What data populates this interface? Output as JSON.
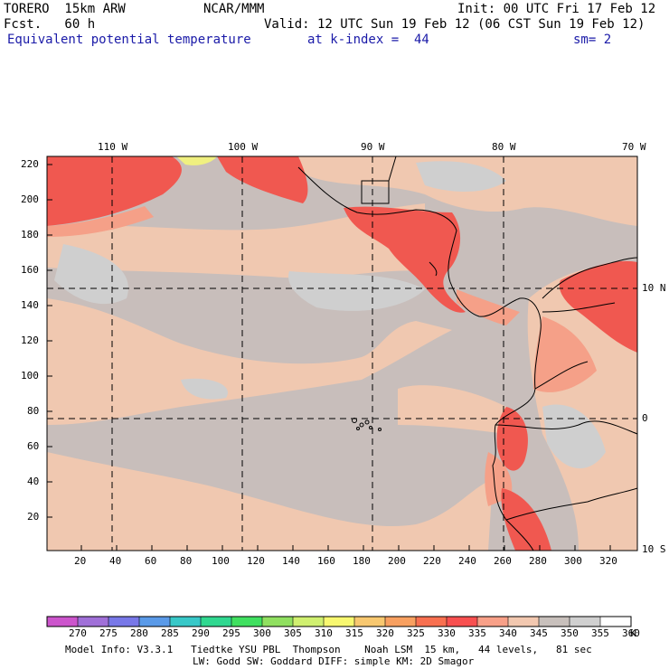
{
  "header": {
    "model": "TORERO  15km ARW",
    "center": "NCAR/MMM",
    "init": "Init: 00 UTC Fri 17 Feb 12",
    "fcst": "Fcst.   60 h",
    "valid": "Valid: 12 UTC Sun 19 Feb 12 (06 CST Sun 19 Feb 12)",
    "field": "Equivalent potential temperature",
    "kindex": "at k-index =  44",
    "sm": "sm= 2"
  },
  "map": {
    "lon_labels": [
      "110 W",
      "100 W",
      "90 W",
      "80 W",
      "70 W"
    ],
    "lat_labels": [
      "10 N",
      "0",
      "10 S"
    ],
    "y_ticks": [
      "220",
      "200",
      "180",
      "160",
      "140",
      "120",
      "100",
      "80",
      "60",
      "40",
      "20"
    ],
    "x_ticks": [
      "20",
      "40",
      "60",
      "80",
      "100",
      "120",
      "140",
      "160",
      "180",
      "200",
      "220",
      "240",
      "260",
      "280",
      "300",
      "320"
    ]
  },
  "colorbar": {
    "labels": [
      "270",
      "275",
      "280",
      "285",
      "290",
      "295",
      "300",
      "305",
      "310",
      "315",
      "320",
      "325",
      "330",
      "335",
      "340",
      "345",
      "350",
      "355",
      "360"
    ],
    "unit": "K",
    "colors": [
      "#cc55cc",
      "#a070d8",
      "#7878e8",
      "#5a9ae8",
      "#38c8c8",
      "#30d890",
      "#40e060",
      "#90e060",
      "#d0f070",
      "#f8f870",
      "#f8c870",
      "#f8a060",
      "#f87050",
      "#f85050",
      "#f8a088",
      "#f2c8b0",
      "#c8c0bc",
      "#d0d0d0",
      "#ffffff"
    ]
  },
  "footer": {
    "line1": "Model Info: V3.3.1   Tiedtke YSU PBL  Thompson    Noah LSM  15 km,   44 levels,   81 sec",
    "line2": "LW: Godd SW: Goddard DIFF: simple KM: 2D Smagor"
  }
}
